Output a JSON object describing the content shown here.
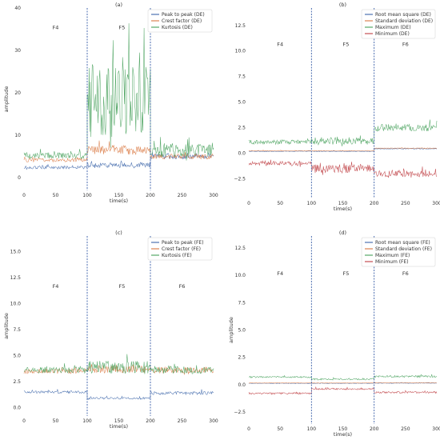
{
  "chart_data": [
    {
      "type": "line",
      "title": "(a)",
      "xlabel": "time(s)",
      "ylabel": "amplitude",
      "xlim": [
        0,
        300
      ],
      "ylim": [
        -3,
        40
      ],
      "xticks": [
        0,
        50,
        100,
        150,
        200,
        250,
        300
      ],
      "yticks": [
        0,
        10,
        20,
        30,
        40
      ],
      "yticklabels": [
        "0",
        "10",
        "20",
        "30",
        "40"
      ],
      "grid": false,
      "legend": "top-right",
      "vlines": [
        100,
        200
      ],
      "annotations": [
        {
          "text": "F4",
          "x": 50,
          "y": 35
        },
        {
          "text": "F5",
          "x": 155,
          "y": 35
        },
        {
          "text": "F6",
          "x": 250,
          "y": 35
        }
      ],
      "series": [
        {
          "name": "Peak to peak (DE)",
          "color": "#4c72b0",
          "segments": [
            {
              "x0": 0,
              "x1": 100,
              "mean": 2.4,
              "amp": 0.6
            },
            {
              "x0": 100,
              "x1": 200,
              "mean": 3.0,
              "amp": 1.0
            },
            {
              "x0": 200,
              "x1": 300,
              "mean": 5.0,
              "amp": 1.0
            }
          ]
        },
        {
          "name": "Crest factor (DE)",
          "color": "#dd8452",
          "segments": [
            {
              "x0": 0,
              "x1": 100,
              "mean": 4.2,
              "amp": 0.8
            },
            {
              "x0": 100,
              "x1": 200,
              "mean": 6.5,
              "amp": 1.8
            },
            {
              "x0": 200,
              "x1": 300,
              "mean": 5.0,
              "amp": 1.0
            }
          ]
        },
        {
          "name": "Kurtosis (DE)",
          "color": "#55a868",
          "segments": [
            {
              "x0": 0,
              "x1": 100,
              "mean": 5.2,
              "amp": 1.2
            },
            {
              "x0": 100,
              "x1": 200,
              "mean": 18,
              "amp": 14
            },
            {
              "x0": 200,
              "x1": 300,
              "mean": 6.5,
              "amp": 2.5
            }
          ]
        }
      ]
    },
    {
      "type": "line",
      "title": "(b)",
      "xlabel": "time(s)",
      "ylabel": "",
      "xlim": [
        0,
        300
      ],
      "ylim": [
        -4.4,
        14.2
      ],
      "xticks": [
        0,
        50,
        100,
        150,
        200,
        250,
        300
      ],
      "yticks": [
        -2.5,
        0,
        2.5,
        5,
        7.5,
        10,
        12.5
      ],
      "yticklabels": [
        "−2.5",
        "0.0",
        "2.5",
        "5.0",
        "7.5",
        "10.0",
        "12.5"
      ],
      "grid": false,
      "legend": "top-right",
      "vlines": [
        100,
        200
      ],
      "annotations": [
        {
          "text": "F4",
          "x": 50,
          "y": 10.5
        },
        {
          "text": "F5",
          "x": 155,
          "y": 10.5
        },
        {
          "text": "F6",
          "x": 250,
          "y": 10.5
        }
      ],
      "series": [
        {
          "name": "Root mean square (DE)",
          "color": "#4c72b0",
          "segments": [
            {
              "x0": 0,
              "x1": 100,
              "mean": 0.2,
              "amp": 0.05
            },
            {
              "x0": 100,
              "x1": 200,
              "mean": 0.2,
              "amp": 0.05
            },
            {
              "x0": 200,
              "x1": 300,
              "mean": 0.45,
              "amp": 0.05
            }
          ]
        },
        {
          "name": "Standard deviation (DE)",
          "color": "#dd8452",
          "segments": [
            {
              "x0": 0,
              "x1": 100,
              "mean": 0.25,
              "amp": 0.05
            },
            {
              "x0": 100,
              "x1": 200,
              "mean": 0.25,
              "amp": 0.05
            },
            {
              "x0": 200,
              "x1": 300,
              "mean": 0.5,
              "amp": 0.05
            }
          ]
        },
        {
          "name": "Maximum (DE)",
          "color": "#55a868",
          "segments": [
            {
              "x0": 0,
              "x1": 100,
              "mean": 1.1,
              "amp": 0.35
            },
            {
              "x0": 100,
              "x1": 200,
              "mean": 1.2,
              "amp": 0.6
            },
            {
              "x0": 200,
              "x1": 300,
              "mean": 2.5,
              "amp": 0.6
            }
          ]
        },
        {
          "name": "Minimum (DE)",
          "color": "#c44e52",
          "segments": [
            {
              "x0": 0,
              "x1": 100,
              "mean": -1.0,
              "amp": 0.35
            },
            {
              "x0": 100,
              "x1": 200,
              "mean": -1.5,
              "amp": 0.7
            },
            {
              "x0": 200,
              "x1": 300,
              "mean": -2.0,
              "amp": 0.5
            }
          ]
        }
      ]
    },
    {
      "type": "line",
      "title": "(c)",
      "xlabel": "time(s)",
      "ylabel": "amplitude",
      "xlim": [
        0,
        300
      ],
      "ylim": [
        -0.8,
        16.5
      ],
      "xticks": [
        0,
        50,
        100,
        150,
        200,
        250,
        300
      ],
      "yticks": [
        0,
        2.5,
        5,
        7.5,
        10,
        12.5,
        15
      ],
      "yticklabels": [
        "0.0",
        "2.5",
        "5.0",
        "7.5",
        "10.0",
        "12.5",
        "15.0"
      ],
      "grid": false,
      "legend": "top-right",
      "vlines": [
        100,
        200
      ],
      "annotations": [
        {
          "text": "F4",
          "x": 50,
          "y": 11.5
        },
        {
          "text": "F5",
          "x": 155,
          "y": 11.5
        },
        {
          "text": "F6",
          "x": 250,
          "y": 11.5
        }
      ],
      "series": [
        {
          "name": "Peak to peak (FE)",
          "color": "#4c72b0",
          "segments": [
            {
              "x0": 0,
              "x1": 100,
              "mean": 1.5,
              "amp": 0.2
            },
            {
              "x0": 100,
              "x1": 200,
              "mean": 0.9,
              "amp": 0.15
            },
            {
              "x0": 200,
              "x1": 300,
              "mean": 1.4,
              "amp": 0.25
            }
          ]
        },
        {
          "name": "Crest factor (FE)",
          "color": "#dd8452",
          "segments": [
            {
              "x0": 0,
              "x1": 100,
              "mean": 3.5,
              "amp": 0.4
            },
            {
              "x0": 100,
              "x1": 200,
              "mean": 3.7,
              "amp": 0.6
            },
            {
              "x0": 200,
              "x1": 300,
              "mean": 3.6,
              "amp": 0.5
            }
          ]
        },
        {
          "name": "Kurtosis (FE)",
          "color": "#55a868",
          "segments": [
            {
              "x0": 0,
              "x1": 100,
              "mean": 3.6,
              "amp": 0.5
            },
            {
              "x0": 100,
              "x1": 200,
              "mean": 3.9,
              "amp": 1.0
            },
            {
              "x0": 200,
              "x1": 300,
              "mean": 3.6,
              "amp": 0.6
            }
          ]
        }
      ]
    },
    {
      "type": "line",
      "title": "(d)",
      "xlabel": "time(s)",
      "ylabel": "amplitude",
      "xlim": [
        0,
        300
      ],
      "ylim": [
        -3.6,
        13.6
      ],
      "xticks": [
        0,
        50,
        100,
        150,
        200,
        250,
        300
      ],
      "yticks": [
        -2.5,
        0,
        2.5,
        5,
        7.5,
        10,
        12.5
      ],
      "yticklabels": [
        "−2.5",
        "0.0",
        "2.5",
        "5.0",
        "7.5",
        "10.0",
        "12.5"
      ],
      "grid": false,
      "legend": "top-right",
      "vlines": [
        100,
        200
      ],
      "annotations": [
        {
          "text": "F4",
          "x": 50,
          "y": 10.0
        },
        {
          "text": "F5",
          "x": 155,
          "y": 10.0
        },
        {
          "text": "F6",
          "x": 250,
          "y": 10.0
        }
      ],
      "series": [
        {
          "name": "Root mean square (FE)",
          "color": "#4c72b0",
          "segments": [
            {
              "x0": 0,
              "x1": 100,
              "mean": 0.12,
              "amp": 0.03
            },
            {
              "x0": 100,
              "x1": 200,
              "mean": 0.12,
              "amp": 0.03
            },
            {
              "x0": 200,
              "x1": 300,
              "mean": 0.14,
              "amp": 0.03
            }
          ]
        },
        {
          "name": "Standard deviation (FE)",
          "color": "#dd8452",
          "segments": [
            {
              "x0": 0,
              "x1": 100,
              "mean": 0.15,
              "amp": 0.03
            },
            {
              "x0": 100,
              "x1": 200,
              "mean": 0.15,
              "amp": 0.03
            },
            {
              "x0": 200,
              "x1": 300,
              "mean": 0.17,
              "amp": 0.03
            }
          ]
        },
        {
          "name": "Maximum (FE)",
          "color": "#55a868",
          "segments": [
            {
              "x0": 0,
              "x1": 100,
              "mean": 0.7,
              "amp": 0.12
            },
            {
              "x0": 100,
              "x1": 200,
              "mean": 0.5,
              "amp": 0.12
            },
            {
              "x0": 200,
              "x1": 300,
              "mean": 0.75,
              "amp": 0.15
            }
          ]
        },
        {
          "name": "Minimum (FE)",
          "color": "#c44e52",
          "segments": [
            {
              "x0": 0,
              "x1": 100,
              "mean": -0.8,
              "amp": 0.15
            },
            {
              "x0": 100,
              "x1": 200,
              "mean": -0.4,
              "amp": 0.12
            },
            {
              "x0": 200,
              "x1": 300,
              "mean": -0.7,
              "amp": 0.15
            }
          ]
        }
      ]
    }
  ]
}
